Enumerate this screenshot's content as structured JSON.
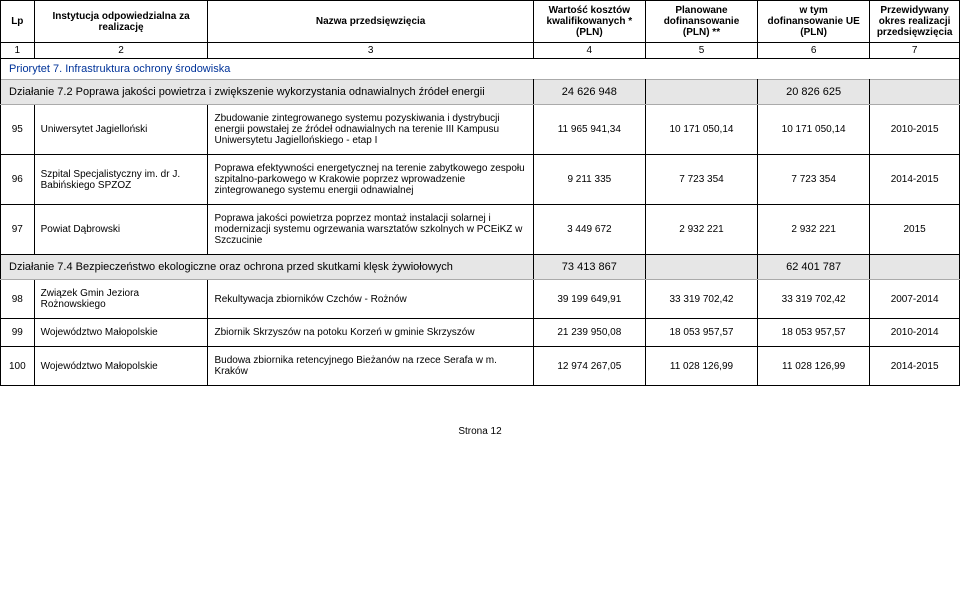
{
  "header": {
    "lp": "Lp",
    "inst": "Instytucja odpowiedzialna za realizację",
    "name": "Nazwa przedsięwzięcia",
    "cost": "Wartość kosztów kwalifikowanych *\n(PLN)",
    "planned": "Planowane dofinansowanie (PLN) **",
    "eu": "w tym dofinansowanie UE (PLN)",
    "period": "Przewidywany okres realizacji przedsięwzięcia"
  },
  "numrow": [
    "1",
    "2",
    "3",
    "4",
    "5",
    "6",
    "7"
  ],
  "priority": "Priorytet 7. Infrastruktura ochrony środowiska",
  "action72": {
    "label": "Działanie 7.2 Poprawa jakości powietrza i zwiększenie wykorzystania odnawialnych źródeł energii",
    "v1": "24 626 948",
    "v2": "",
    "v3": "20 826 625",
    "v4": ""
  },
  "action74": {
    "label": "Działanie 7.4 Bezpieczeństwo ekologiczne oraz ochrona przed skutkami klęsk żywiołowych",
    "v1": "73 413 867",
    "v2": "",
    "v3": "62 401 787",
    "v4": ""
  },
  "rows": [
    {
      "lp": "95",
      "inst": "Uniwersytet Jagielloński",
      "name": "Zbudowanie zintegrowanego systemu pozyskiwania i dystrybucji energii powstałej ze źródeł odnawialnych na terenie III Kampusu Uniwersytetu Jagiellońskiego - etap I",
      "v1": "11 965 941,34",
      "v2": "10 171 050,14",
      "v3": "10 171 050,14",
      "v4": "2010-2015"
    },
    {
      "lp": "96",
      "inst": "Szpital Specjalistyczny im. dr J. Babińskiego SPZOZ",
      "name": "Poprawa efektywności energetycznej na terenie zabytkowego zespołu szpitalno-parkowego w Krakowie poprzez wprowadzenie zintegrowanego systemu energii odnawialnej",
      "v1": "9 211 335",
      "v2": "7 723 354",
      "v3": "7 723 354",
      "v4": "2014-2015"
    },
    {
      "lp": "97",
      "inst": "Powiat Dąbrowski",
      "name": "Poprawa jakości powietrza poprzez montaż instalacji solarnej i modernizacji systemu ogrzewania warsztatów szkolnych w PCEiKZ w Szczucinie",
      "v1": "3 449 672",
      "v2": "2 932 221",
      "v3": "2 932 221",
      "v4": "2015"
    }
  ],
  "rows2": [
    {
      "lp": "98",
      "inst": "Związek Gmin Jeziora Rożnowskiego",
      "name": "Rekultywacja zbiorników Czchów - Rożnów",
      "v1": "39 199 649,91",
      "v2": "33 319 702,42",
      "v3": "33 319 702,42",
      "v4": "2007-2014"
    },
    {
      "lp": "99",
      "inst": "Województwo Małopolskie",
      "name": "Zbiornik Skrzyszów na potoku Korzeń w gminie Skrzyszów",
      "v1": "21 239 950,08",
      "v2": "18 053 957,57",
      "v3": "18 053 957,57",
      "v4": "2010-2014"
    },
    {
      "lp": "100",
      "inst": "Województwo Małopolskie",
      "name": "Budowa zbiornika retencyjnego Bieżanów na rzece Serafa w m. Kraków",
      "v1": "12 974 267,05",
      "v2": "11 028 126,99",
      "v3": "11 028 126,99",
      "v4": "2014-2015"
    }
  ],
  "footer": "Strona 12"
}
